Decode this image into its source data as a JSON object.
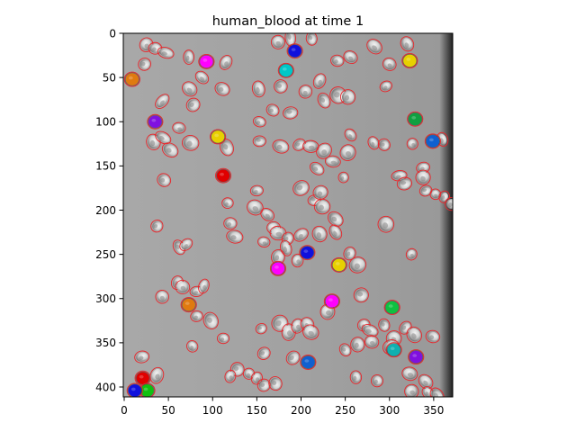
{
  "figure": {
    "title": "human_blood at time 1"
  },
  "axes": {
    "x_ticks": [
      {
        "value": 0,
        "label": "0"
      },
      {
        "value": 50,
        "label": "50"
      },
      {
        "value": 100,
        "label": "100"
      },
      {
        "value": 150,
        "label": "150"
      },
      {
        "value": 200,
        "label": "200"
      },
      {
        "value": 250,
        "label": "250"
      },
      {
        "value": 300,
        "label": "300"
      },
      {
        "value": 350,
        "label": "350"
      }
    ],
    "y_ticks": [
      {
        "value": 0,
        "label": "0"
      },
      {
        "value": 50,
        "label": "50"
      },
      {
        "value": 100,
        "label": "100"
      },
      {
        "value": 150,
        "label": "150"
      },
      {
        "value": 200,
        "label": "200"
      },
      {
        "value": 250,
        "label": "250"
      },
      {
        "value": 300,
        "label": "300"
      },
      {
        "value": 350,
        "label": "350"
      },
      {
        "value": 400,
        "label": "400"
      }
    ],
    "x_range": [
      0,
      372
    ],
    "y_range": [
      412,
      0
    ],
    "outline_color": "#e8262b"
  },
  "tracked_cells": [
    {
      "x": 9,
      "y": 52,
      "color": "#e07a10"
    },
    {
      "x": 93,
      "y": 32,
      "color": "#ff00ff"
    },
    {
      "x": 193,
      "y": 20,
      "color": "#1010dd"
    },
    {
      "x": 183,
      "y": 42,
      "color": "#00c8c8"
    },
    {
      "x": 323,
      "y": 31,
      "color": "#e8d000"
    },
    {
      "x": 35,
      "y": 100,
      "color": "#8010e0"
    },
    {
      "x": 329,
      "y": 97,
      "color": "#10a040"
    },
    {
      "x": 349,
      "y": 122,
      "color": "#1060d0"
    },
    {
      "x": 106,
      "y": 117,
      "color": "#e8d000"
    },
    {
      "x": 112,
      "y": 161,
      "color": "#e00000"
    },
    {
      "x": 207,
      "y": 248,
      "color": "#1010dd"
    },
    {
      "x": 174,
      "y": 266,
      "color": "#ff00ff"
    },
    {
      "x": 243,
      "y": 262,
      "color": "#e8d000"
    },
    {
      "x": 73,
      "y": 307,
      "color": "#e07a10"
    },
    {
      "x": 235,
      "y": 303,
      "color": "#ff00ff"
    },
    {
      "x": 303,
      "y": 310,
      "color": "#10c040"
    },
    {
      "x": 305,
      "y": 358,
      "color": "#10b0b0"
    },
    {
      "x": 330,
      "y": 366,
      "color": "#8010e0"
    },
    {
      "x": 208,
      "y": 372,
      "color": "#1060d0"
    },
    {
      "x": 21,
      "y": 390,
      "color": "#e00000"
    },
    {
      "x": 26,
      "y": 404,
      "color": "#10c010"
    },
    {
      "x": 12,
      "y": 404,
      "color": "#1010dd"
    }
  ],
  "outlined_cells": [
    [
      25,
      13
    ],
    [
      35,
      17
    ],
    [
      47,
      22
    ],
    [
      23,
      35
    ],
    [
      73,
      27
    ],
    [
      115,
      33
    ],
    [
      174,
      10
    ],
    [
      188,
      5
    ],
    [
      212,
      6
    ],
    [
      241,
      31
    ],
    [
      256,
      27
    ],
    [
      283,
      15
    ],
    [
      300,
      35
    ],
    [
      320,
      12
    ],
    [
      43,
      77
    ],
    [
      74,
      63
    ],
    [
      78,
      81
    ],
    [
      88,
      50
    ],
    [
      62,
      107
    ],
    [
      111,
      63
    ],
    [
      152,
      63
    ],
    [
      177,
      60
    ],
    [
      205,
      66
    ],
    [
      221,
      54
    ],
    [
      226,
      76
    ],
    [
      242,
      70
    ],
    [
      253,
      72
    ],
    [
      296,
      60
    ],
    [
      168,
      87
    ],
    [
      188,
      90
    ],
    [
      153,
      100
    ],
    [
      153,
      122
    ],
    [
      177,
      128
    ],
    [
      198,
      126
    ],
    [
      211,
      128
    ],
    [
      218,
      153
    ],
    [
      226,
      133
    ],
    [
      236,
      145
    ],
    [
      248,
      163
    ],
    [
      253,
      135
    ],
    [
      256,
      115
    ],
    [
      282,
      124
    ],
    [
      294,
      126
    ],
    [
      326,
      125
    ],
    [
      360,
      120
    ],
    [
      338,
      152
    ],
    [
      311,
      161
    ],
    [
      317,
      170
    ],
    [
      338,
      163
    ],
    [
      341,
      178
    ],
    [
      352,
      182
    ],
    [
      362,
      185
    ],
    [
      370,
      193
    ],
    [
      33,
      123
    ],
    [
      44,
      118
    ],
    [
      52,
      132
    ],
    [
      116,
      129
    ],
    [
      45,
      166
    ],
    [
      75,
      124
    ],
    [
      200,
      175
    ],
    [
      215,
      189
    ],
    [
      222,
      180
    ],
    [
      224,
      196
    ],
    [
      239,
      210
    ],
    [
      150,
      178
    ],
    [
      148,
      197
    ],
    [
      162,
      205
    ],
    [
      169,
      220
    ],
    [
      174,
      226
    ],
    [
      185,
      232
    ],
    [
      200,
      228
    ],
    [
      221,
      227
    ],
    [
      239,
      225
    ],
    [
      125,
      230
    ],
    [
      117,
      192
    ],
    [
      120,
      215
    ],
    [
      158,
      236
    ],
    [
      174,
      253
    ],
    [
      183,
      243
    ],
    [
      196,
      257
    ],
    [
      62,
      242
    ],
    [
      70,
      239
    ],
    [
      37,
      218
    ],
    [
      255,
      249
    ],
    [
      264,
      262
    ],
    [
      296,
      216
    ],
    [
      325,
      250
    ],
    [
      268,
      296
    ],
    [
      271,
      330
    ],
    [
      278,
      336
    ],
    [
      305,
      345
    ],
    [
      318,
      333
    ],
    [
      328,
      341
    ],
    [
      349,
      343
    ],
    [
      250,
      358
    ],
    [
      264,
      352
    ],
    [
      280,
      349
    ],
    [
      294,
      330
    ],
    [
      302,
      355
    ],
    [
      323,
      385
    ],
    [
      341,
      394
    ],
    [
      343,
      406
    ],
    [
      354,
      410
    ],
    [
      325,
      405
    ],
    [
      262,
      389
    ],
    [
      286,
      393
    ],
    [
      60,
      282
    ],
    [
      66,
      287
    ],
    [
      82,
      292
    ],
    [
      90,
      286
    ],
    [
      82,
      320
    ],
    [
      98,
      325
    ],
    [
      155,
      334
    ],
    [
      176,
      328
    ],
    [
      186,
      338
    ],
    [
      196,
      331
    ],
    [
      207,
      329
    ],
    [
      211,
      338
    ],
    [
      230,
      315
    ],
    [
      77,
      354
    ],
    [
      112,
      345
    ],
    [
      128,
      380
    ],
    [
      120,
      388
    ],
    [
      141,
      385
    ],
    [
      150,
      390
    ],
    [
      158,
      398
    ],
    [
      171,
      396
    ],
    [
      191,
      367
    ],
    [
      158,
      362
    ],
    [
      20,
      366
    ],
    [
      37,
      387
    ],
    [
      43,
      298
    ]
  ]
}
